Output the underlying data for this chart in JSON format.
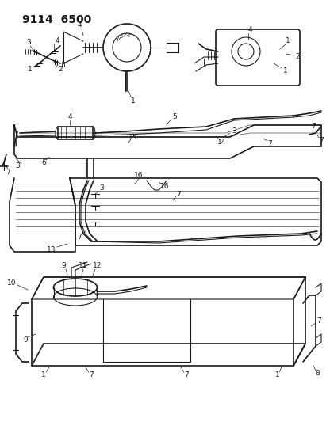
{
  "title": "9114 6500",
  "bg_color": "#ffffff",
  "line_color": "#1a1a1a",
  "fig_width": 4.11,
  "fig_height": 5.33,
  "dpi": 100,
  "title_fontsize": 10,
  "label_fontsize": 6.5
}
